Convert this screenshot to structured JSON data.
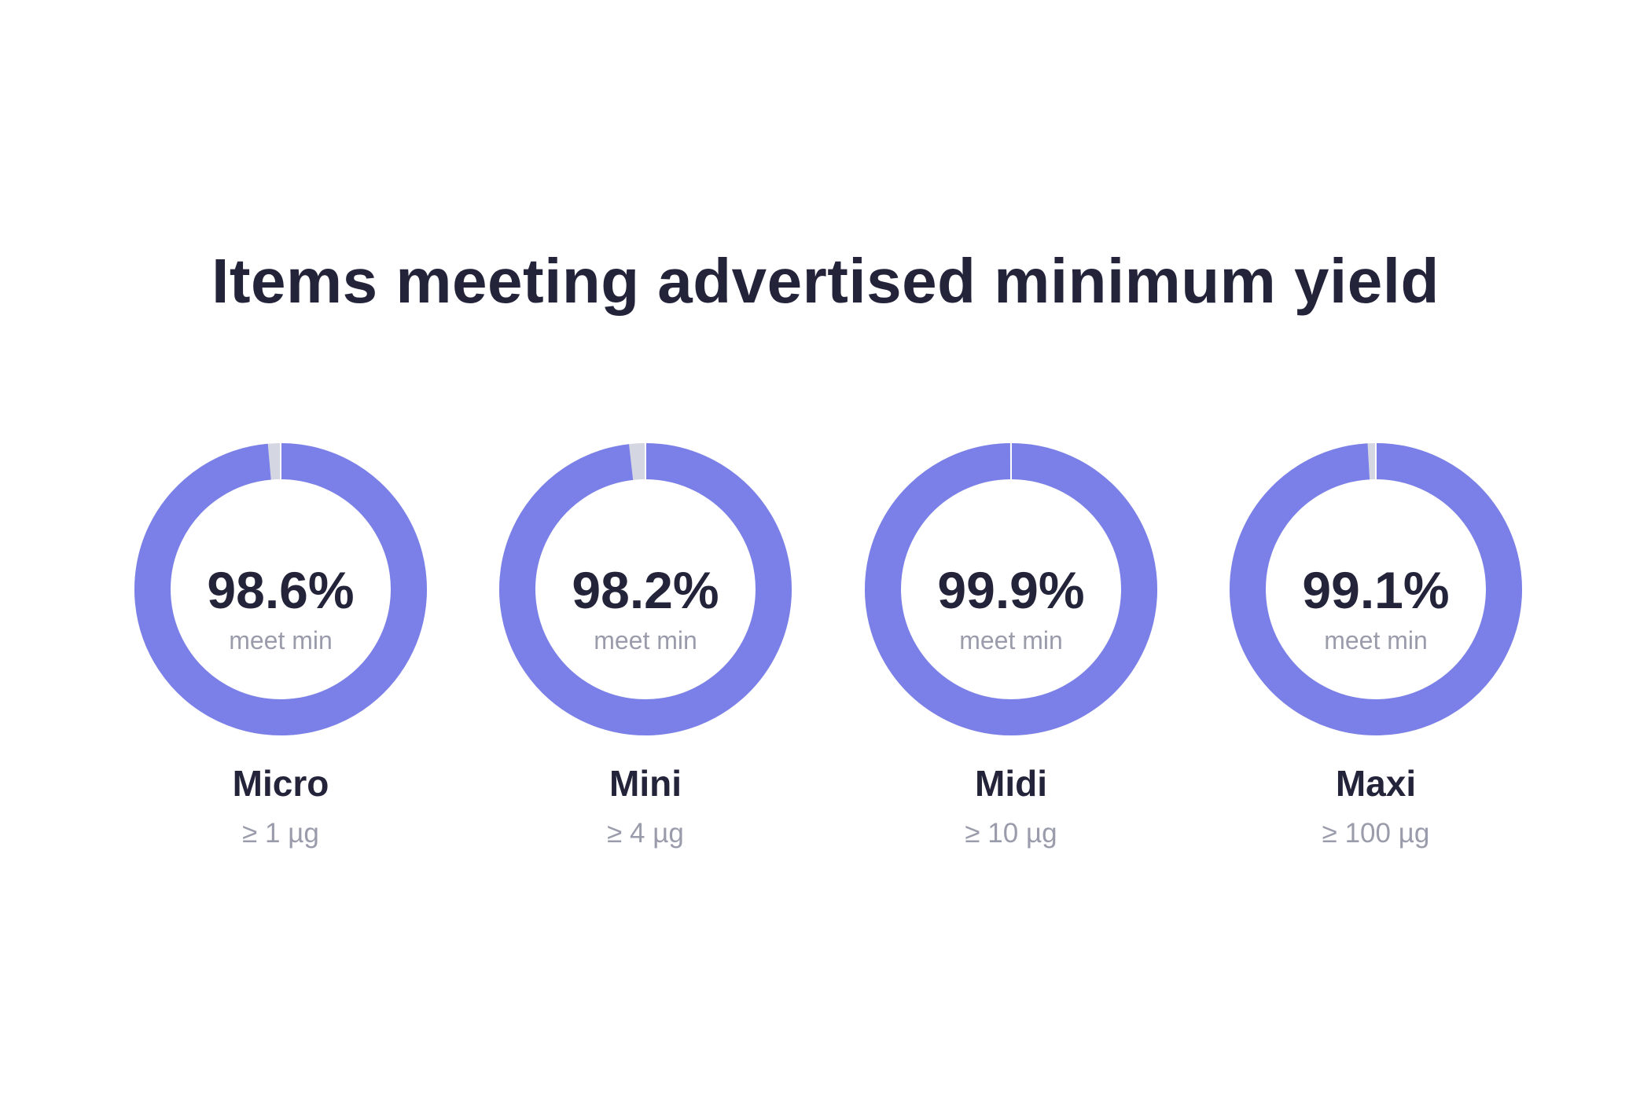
{
  "chart_data": {
    "type": "donut",
    "title": "Items meeting advertised minimum yield",
    "center_sublabel": "meet min",
    "unit": "%",
    "categories": [
      "Micro",
      "Mini",
      "Midi",
      "Maxi"
    ],
    "thresholds": [
      "≥ 1 µg",
      "≥ 4 µg",
      "≥ 10 µg",
      "≥ 100 µg"
    ],
    "values": [
      98.6,
      98.2,
      99.9,
      99.1
    ],
    "value_labels": [
      "98.6%",
      "98.2%",
      "99.9%",
      "99.1%"
    ],
    "ylim": [
      0,
      100
    ],
    "colors": {
      "meet": "#7b80e8",
      "miss": "#d4d6e2",
      "text_dark": "#23243a",
      "text_muted": "#9a9cab"
    }
  }
}
